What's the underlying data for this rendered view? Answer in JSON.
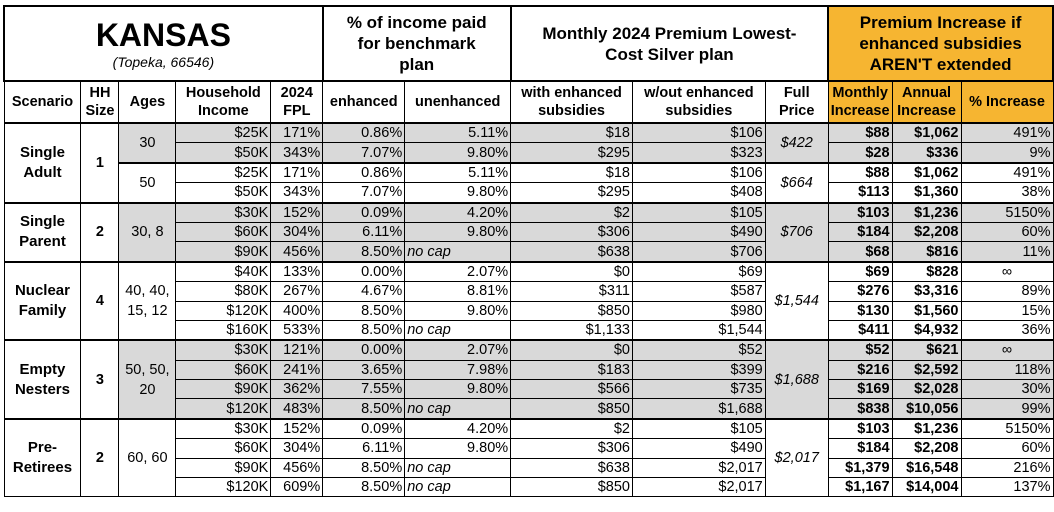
{
  "header": {
    "state": "KANSAS",
    "location": "(Topeka, 66546)",
    "pct_income_title": "% of income paid for benchmark plan",
    "premium_title": "Monthly 2024 Premium Lowest-Cost Silver plan",
    "increase_title": "Premium Increase if enhanced subsidies AREN'T extended",
    "columns": [
      "Scenario",
      "HH Size",
      "Ages",
      "Household Income",
      "2024 FPL",
      "enhanced",
      "unenhanced",
      "with enhanced subsidies",
      "w/out enhanced subsidies",
      "Full Price",
      "Monthly Increase",
      "Annual Increase",
      "% Increase"
    ]
  },
  "colors": {
    "increase_header": "#F6B531",
    "shade": "#D9D9D9"
  },
  "groups": [
    {
      "scenario": "Single Adult",
      "hh_size": "1",
      "subgroups": [
        {
          "ages": "30",
          "full_price": "$422",
          "shaded": true,
          "rows": [
            [
              "$25K",
              "171%",
              "0.86%",
              "5.11%",
              "$18",
              "$106",
              "$88",
              "$1,062",
              "491%"
            ],
            [
              "$50K",
              "343%",
              "7.07%",
              "9.80%",
              "$295",
              "$323",
              "$28",
              "$336",
              "9%"
            ]
          ]
        },
        {
          "ages": "50",
          "full_price": "$664",
          "shaded": false,
          "rows": [
            [
              "$25K",
              "171%",
              "0.86%",
              "5.11%",
              "$18",
              "$106",
              "$88",
              "$1,062",
              "491%"
            ],
            [
              "$50K",
              "343%",
              "7.07%",
              "9.80%",
              "$295",
              "$408",
              "$113",
              "$1,360",
              "38%"
            ]
          ]
        }
      ]
    },
    {
      "scenario": "Single Parent",
      "hh_size": "2",
      "subgroups": [
        {
          "ages": "30, 8",
          "full_price": "$706",
          "shaded": true,
          "rows": [
            [
              "$30K",
              "152%",
              "0.09%",
              "4.20%",
              "$2",
              "$105",
              "$103",
              "$1,236",
              "5150%"
            ],
            [
              "$60K",
              "304%",
              "6.11%",
              "9.80%",
              "$306",
              "$490",
              "$184",
              "$2,208",
              "60%"
            ],
            [
              "$90K",
              "456%",
              "8.50%",
              "no cap",
              "$638",
              "$706",
              "$68",
              "$816",
              "11%"
            ]
          ]
        }
      ]
    },
    {
      "scenario": "Nuclear Family",
      "hh_size": "4",
      "subgroups": [
        {
          "ages": "40, 40, 15, 12",
          "full_price": "$1,544",
          "shaded": false,
          "rows": [
            [
              "$40K",
              "133%",
              "0.00%",
              "2.07%",
              "$0",
              "$69",
              "$69",
              "$828",
              "∞"
            ],
            [
              "$80K",
              "267%",
              "4.67%",
              "8.81%",
              "$311",
              "$587",
              "$276",
              "$3,316",
              "89%"
            ],
            [
              "$120K",
              "400%",
              "8.50%",
              "9.80%",
              "$850",
              "$980",
              "$130",
              "$1,560",
              "15%"
            ],
            [
              "$160K",
              "533%",
              "8.50%",
              "no cap",
              "$1,133",
              "$1,544",
              "$411",
              "$4,932",
              "36%"
            ]
          ]
        }
      ]
    },
    {
      "scenario": "Empty Nesters",
      "hh_size": "3",
      "subgroups": [
        {
          "ages": "50, 50, 20",
          "full_price": "$1,688",
          "shaded": true,
          "rows": [
            [
              "$30K",
              "121%",
              "0.00%",
              "2.07%",
              "$0",
              "$52",
              "$52",
              "$621",
              "∞"
            ],
            [
              "$60K",
              "241%",
              "3.65%",
              "7.98%",
              "$183",
              "$399",
              "$216",
              "$2,592",
              "118%"
            ],
            [
              "$90K",
              "362%",
              "7.55%",
              "9.80%",
              "$566",
              "$735",
              "$169",
              "$2,028",
              "30%"
            ],
            [
              "$120K",
              "483%",
              "8.50%",
              "no cap",
              "$850",
              "$1,688",
              "$838",
              "$10,056",
              "99%"
            ]
          ]
        }
      ]
    },
    {
      "scenario": "Pre-Retirees",
      "hh_size": "2",
      "subgroups": [
        {
          "ages": "60, 60",
          "full_price": "$2,017",
          "shaded": false,
          "rows": [
            [
              "$30K",
              "152%",
              "0.09%",
              "4.20%",
              "$2",
              "$105",
              "$103",
              "$1,236",
              "5150%"
            ],
            [
              "$60K",
              "304%",
              "6.11%",
              "9.80%",
              "$306",
              "$490",
              "$184",
              "$2,208",
              "60%"
            ],
            [
              "$90K",
              "456%",
              "8.50%",
              "no cap",
              "$638",
              "$2,017",
              "$1,379",
              "$16,548",
              "216%"
            ],
            [
              "$120K",
              "609%",
              "8.50%",
              "no cap",
              "$850",
              "$2,017",
              "$1,167",
              "$14,004",
              "137%"
            ]
          ]
        }
      ]
    }
  ]
}
